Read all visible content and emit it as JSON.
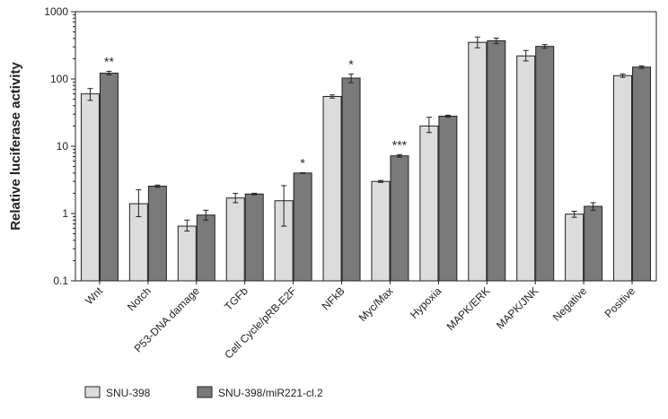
{
  "chart_data": {
    "type": "bar",
    "ylabel": "Relative luciferase activity",
    "y_scale": "log",
    "ylim": [
      0.1,
      1000
    ],
    "yticks": [
      "0.1",
      "1",
      "10",
      "100",
      "1000"
    ],
    "categories": [
      "Wnt",
      "Notch",
      "P53-DNA damage",
      "TGFb",
      "Cell Cycle/pRB-E2F",
      "NFkB",
      "Myc/Max",
      "Hypoxia",
      "MAPK/ERK",
      "MAPK/JNK",
      "Negative",
      "Positive"
    ],
    "series": [
      {
        "name": "SNU-398",
        "color": "#dcdcdc",
        "values": [
          60,
          1.4,
          0.65,
          1.7,
          1.55,
          55,
          3.0,
          20,
          350,
          220,
          0.98,
          112
        ],
        "errors": [
          [
            48,
            72
          ],
          [
            0.9,
            2.25
          ],
          [
            0.55,
            0.8
          ],
          [
            1.45,
            2.0
          ],
          [
            0.65,
            2.6
          ],
          [
            52,
            58
          ],
          [
            2.9,
            3.1
          ],
          [
            16,
            27
          ],
          [
            290,
            420
          ],
          [
            185,
            265
          ],
          [
            0.88,
            1.08
          ],
          [
            106,
            118
          ]
        ]
      },
      {
        "name": "SNU-398/miR221-cl.2",
        "color": "#7a7a7a",
        "values": [
          122,
          2.55,
          0.95,
          1.95,
          4.0,
          103,
          7.2,
          28,
          370,
          305,
          1.28,
          150
        ],
        "errors": [
          [
            115,
            130
          ],
          [
            2.45,
            2.65
          ],
          [
            0.8,
            1.12
          ],
          [
            1.9,
            2.0
          ],
          [
            3.95,
            4.05
          ],
          [
            88,
            118
          ],
          [
            6.9,
            7.5
          ],
          [
            27,
            29
          ],
          [
            335,
            405
          ],
          [
            285,
            325
          ],
          [
            1.12,
            1.45
          ],
          [
            144,
            156
          ]
        ]
      }
    ],
    "annotations": [
      {
        "category": "Wnt",
        "text": "**"
      },
      {
        "category": "Cell Cycle/pRB-E2F",
        "text": "*"
      },
      {
        "category": "NFkB",
        "text": "*"
      },
      {
        "category": "Myc/Max",
        "text": "***"
      }
    ],
    "legend_placement": "bottom-left",
    "grid": false
  }
}
